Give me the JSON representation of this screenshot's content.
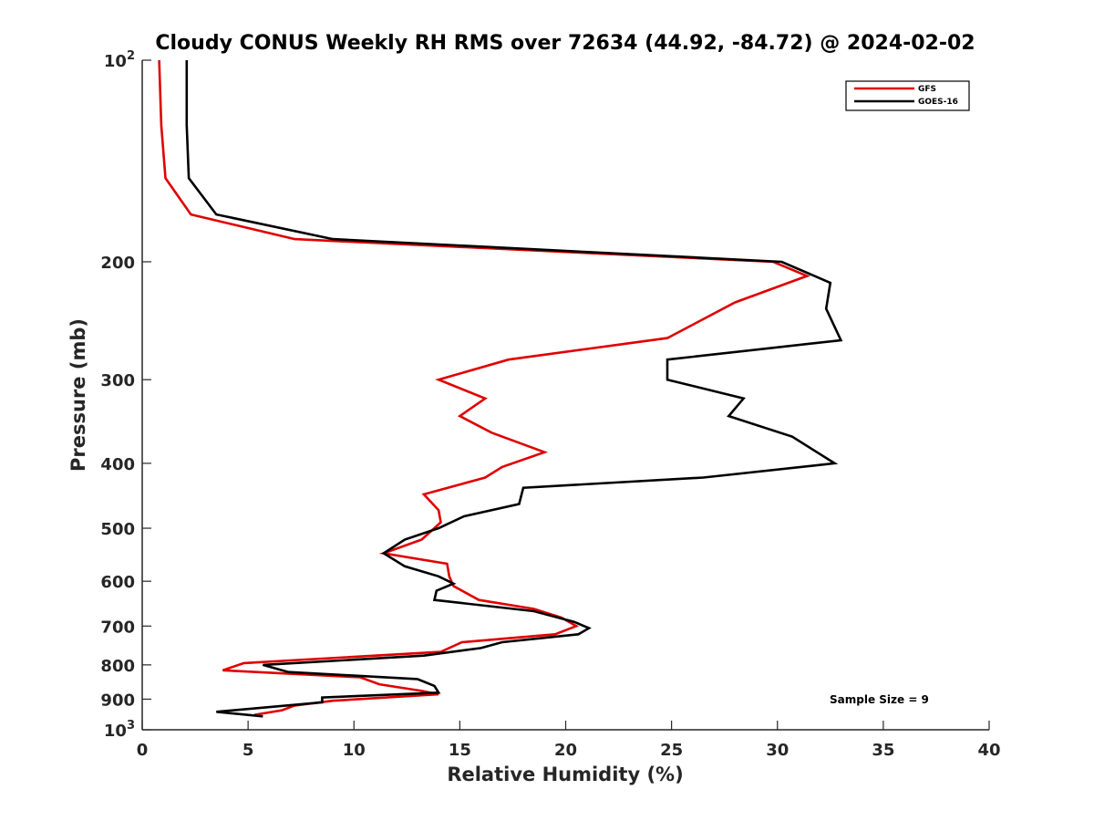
{
  "chart_data": {
    "type": "line",
    "title": "Cloudy CONUS Weekly RH RMS over 72634 (44.92, -84.72) @ 2024-02-02",
    "xlabel": "Relative Humidity (%)",
    "ylabel": "Pressure (mb)",
    "xlim": [
      0,
      40
    ],
    "ylim": [
      100,
      1000
    ],
    "y_scale": "log",
    "y_reversed": true,
    "grid": false,
    "legend_position": "top-right",
    "x_ticks": [
      "0",
      "5",
      "10",
      "15",
      "20",
      "25",
      "30",
      "35",
      "40"
    ],
    "x_tick_values": [
      0,
      5,
      10,
      15,
      20,
      25,
      30,
      35,
      40
    ],
    "y_ticks": [
      {
        "value": 100,
        "base": "10",
        "sup": "2"
      },
      {
        "value": 200,
        "base": "200",
        "sup": ""
      },
      {
        "value": 300,
        "base": "300",
        "sup": ""
      },
      {
        "value": 400,
        "base": "400",
        "sup": ""
      },
      {
        "value": 500,
        "base": "500",
        "sup": ""
      },
      {
        "value": 600,
        "base": "600",
        "sup": ""
      },
      {
        "value": 700,
        "base": "700",
        "sup": ""
      },
      {
        "value": 800,
        "base": "800",
        "sup": ""
      },
      {
        "value": 900,
        "base": "900",
        "sup": ""
      },
      {
        "value": 1000,
        "base": "10",
        "sup": "3"
      }
    ],
    "annotation": "Sample Size = 9",
    "series": [
      {
        "name": "GFS",
        "color": "#e00000",
        "points": [
          [
            0.8,
            100
          ],
          [
            0.9,
            125
          ],
          [
            1.1,
            150
          ],
          [
            2.3,
            170
          ],
          [
            7.2,
            185
          ],
          [
            29.8,
            200
          ],
          [
            31.4,
            210
          ],
          [
            28.0,
            230
          ],
          [
            24.8,
            260
          ],
          [
            17.3,
            280
          ],
          [
            14.0,
            300
          ],
          [
            16.2,
            320
          ],
          [
            15.0,
            340
          ],
          [
            16.5,
            360
          ],
          [
            19.0,
            385
          ],
          [
            17.0,
            405
          ],
          [
            16.2,
            420
          ],
          [
            13.3,
            445
          ],
          [
            14.0,
            470
          ],
          [
            14.1,
            490
          ],
          [
            13.2,
            520
          ],
          [
            11.4,
            545
          ],
          [
            14.4,
            565
          ],
          [
            14.5,
            590
          ],
          [
            14.7,
            610
          ],
          [
            15.9,
            640
          ],
          [
            18.5,
            660
          ],
          [
            19.8,
            680
          ],
          [
            20.5,
            700
          ],
          [
            19.5,
            720
          ],
          [
            15.1,
            740
          ],
          [
            14.1,
            765
          ],
          [
            4.8,
            795
          ],
          [
            3.8,
            815
          ],
          [
            10.3,
            835
          ],
          [
            11.2,
            855
          ],
          [
            13.2,
            875
          ],
          [
            14.0,
            885
          ],
          [
            9.0,
            905
          ],
          [
            7.2,
            920
          ],
          [
            6.6,
            935
          ],
          [
            5.3,
            950
          ]
        ]
      },
      {
        "name": "GOES-16",
        "color": "#000000",
        "points": [
          [
            2.1,
            100
          ],
          [
            2.1,
            125
          ],
          [
            2.2,
            150
          ],
          [
            3.5,
            170
          ],
          [
            9.0,
            185
          ],
          [
            30.2,
            200
          ],
          [
            32.5,
            215
          ],
          [
            32.3,
            235
          ],
          [
            33.0,
            262
          ],
          [
            24.8,
            280
          ],
          [
            24.8,
            300
          ],
          [
            28.4,
            320
          ],
          [
            27.7,
            340
          ],
          [
            30.7,
            365
          ],
          [
            32.7,
            400
          ],
          [
            26.5,
            420
          ],
          [
            18.0,
            435
          ],
          [
            17.8,
            460
          ],
          [
            15.2,
            480
          ],
          [
            14.0,
            500
          ],
          [
            12.4,
            520
          ],
          [
            11.4,
            545
          ],
          [
            12.4,
            570
          ],
          [
            14.0,
            590
          ],
          [
            14.7,
            605
          ],
          [
            13.9,
            620
          ],
          [
            13.8,
            640
          ],
          [
            18.5,
            665
          ],
          [
            20.4,
            690
          ],
          [
            21.1,
            705
          ],
          [
            20.6,
            720
          ],
          [
            17.0,
            740
          ],
          [
            16.0,
            755
          ],
          [
            13.3,
            775
          ],
          [
            5.7,
            800
          ],
          [
            6.9,
            820
          ],
          [
            13.0,
            840
          ],
          [
            13.8,
            860
          ],
          [
            14.0,
            880
          ],
          [
            8.5,
            895
          ],
          [
            8.5,
            910
          ],
          [
            3.5,
            940
          ],
          [
            5.7,
            955
          ]
        ]
      }
    ]
  }
}
